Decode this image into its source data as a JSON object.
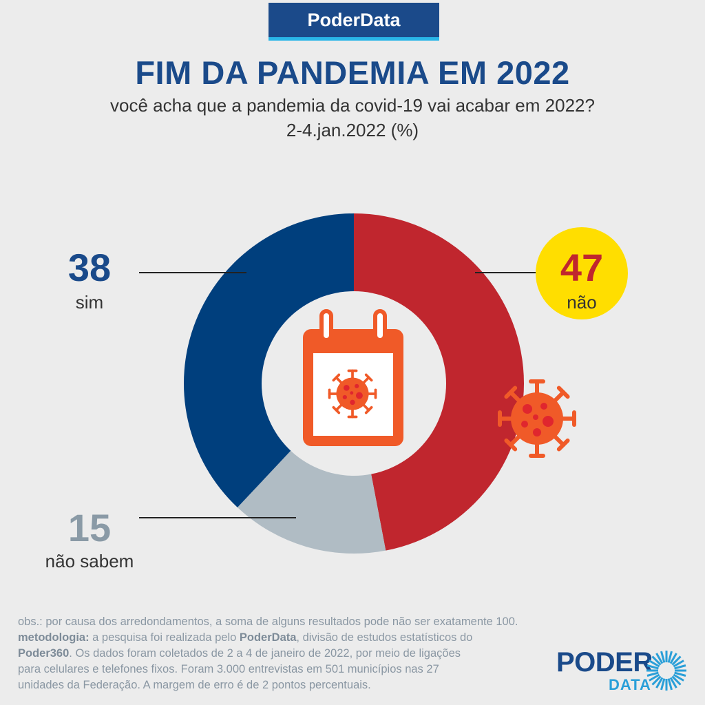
{
  "brand": "PoderData",
  "header": {
    "title": "FIM DA PANDEMIA EM 2022",
    "subtitle": "você acha que a pandemia da covid-19 vai acabar em 2022?",
    "date": "2-4.jan.2022 (%)"
  },
  "chart_data": {
    "type": "pie",
    "donut": true,
    "categories": [
      "não",
      "não sabem",
      "sim"
    ],
    "values": [
      47,
      15,
      38
    ],
    "labels": {
      "sim": "sim",
      "nao": "não",
      "nao_sabem": "não sabem"
    },
    "display_values": {
      "sim": "38",
      "nao": "47",
      "nao_sabem": "15"
    },
    "colors": {
      "não": "#c0262e",
      "não sabem": "#b0bcc4",
      "sim": "#003f7d"
    },
    "center_icon": "calendar-virus-icon",
    "decoration_icon": "virus-icon"
  },
  "footer": {
    "obs": "obs.: por causa dos arredondamentos, a soma de alguns resultados pode não ser exatamente 100.",
    "metod_label": "metodologia:",
    "metod_text1": " a pesquisa foi realizada pelo ",
    "poderdata": "PoderData",
    "metod_text2": ", divisão de estudos estatísticos do",
    "poder360": "Poder360",
    "metod_text3": ". Os dados foram coletados de 2 a 4 de janeiro de 2022, por meio de ligações",
    "line4": "para celulares e telefones fixos. Foram 3.000 entrevistas em 501 municípios nas 27",
    "line5": "unidades da Federação. A margem de erro é de 2 pontos percentuais."
  },
  "logo": {
    "word1": "PODER",
    "word2": "DATA"
  },
  "colors": {
    "accent": "#1a4a8a",
    "highlight": "#ffde00",
    "icon": "#f05a28"
  }
}
